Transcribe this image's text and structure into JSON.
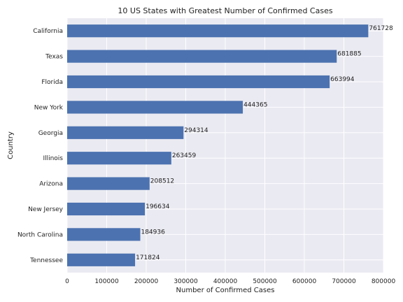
{
  "chart_data": {
    "type": "bar",
    "orientation": "horizontal",
    "title": "10 US States with Greatest Number of Confirmed Cases",
    "xlabel": "Number of Confirmed Cases",
    "ylabel": "Country",
    "categories": [
      "California",
      "Texas",
      "Florida",
      "New York",
      "Georgia",
      "Illinois",
      "Arizona",
      "New Jersey",
      "North Carolina",
      "Tennessee"
    ],
    "values": [
      761728,
      681885,
      663994,
      444365,
      294314,
      263459,
      208512,
      196634,
      184936,
      171824
    ],
    "xlim": [
      0,
      800000
    ],
    "xticks": [
      0,
      100000,
      200000,
      300000,
      400000,
      500000,
      600000,
      700000,
      800000
    ],
    "grid": true,
    "colors": {
      "bar": "#4c72b0",
      "background": "#eaeaf2"
    }
  }
}
